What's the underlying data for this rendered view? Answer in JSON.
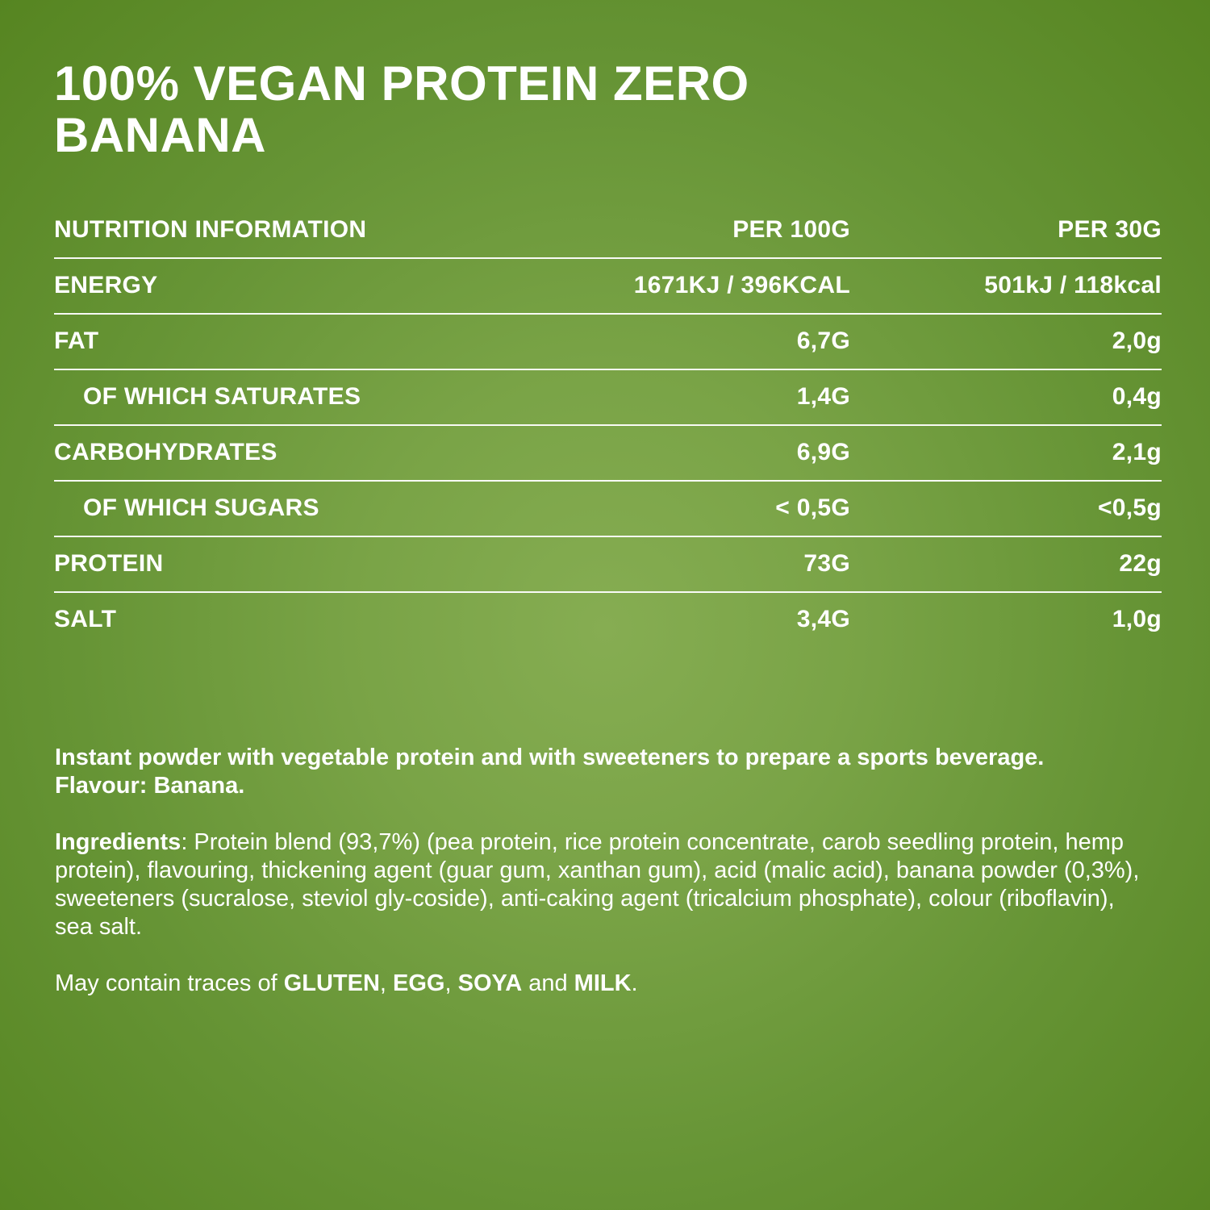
{
  "title": {
    "line1": "100% VEGAN PROTEIN ZERO",
    "line2": "BANANA"
  },
  "nutrition_table": {
    "headers": [
      "NUTRITION INFORMATION",
      "PER 100G",
      "PER 30G"
    ],
    "rows": [
      {
        "label": "ENERGY",
        "per100": "1671KJ / 396KCAL",
        "per30": "501kJ / 118kcal",
        "indent": false
      },
      {
        "label": "FAT",
        "per100": "6,7G",
        "per30": "2,0g",
        "indent": false
      },
      {
        "label": "OF WHICH SATURATES",
        "per100": "1,4G",
        "per30": "0,4g",
        "indent": true
      },
      {
        "label": "CARBOHYDRATES",
        "per100": "6,9G",
        "per30": "2,1g",
        "indent": false
      },
      {
        "label": "OF WHICH SUGARS",
        "per100": "< 0,5G",
        "per30": "<0,5g",
        "indent": true
      },
      {
        "label": "PROTEIN",
        "per100": "73G",
        "per30": "22g",
        "indent": false
      },
      {
        "label": "SALT",
        "per100": "3,4G",
        "per30": "1,0g",
        "indent": false
      }
    ]
  },
  "description": "Instant powder with vegetable protein and with sweeteners to prepare a sports beverage. Flavour: Banana.",
  "ingredients": {
    "label": "Ingredients",
    "text": ": Protein blend (93,7%) (pea protein, rice protein concentrate, carob seedling protein, hemp protein), flavouring, thickening agent (guar gum, xanthan gum), acid (malic acid), banana powder (0,3%), sweeteners (sucralose, steviol gly-coside), anti-caking agent (tricalcium phosphate), colour (riboflavin), sea salt."
  },
  "allergens": {
    "prefix": "May contain traces of ",
    "a1": "GLUTEN",
    "sep1": ", ",
    "a2": "EGG",
    "sep2": ", ",
    "a3": "SOYA",
    "sep3": " and ",
    "a4": "MILK",
    "suffix": "."
  },
  "colors": {
    "background_center": "#86ad52",
    "background_edge": "#568521",
    "text": "#ffffff"
  }
}
